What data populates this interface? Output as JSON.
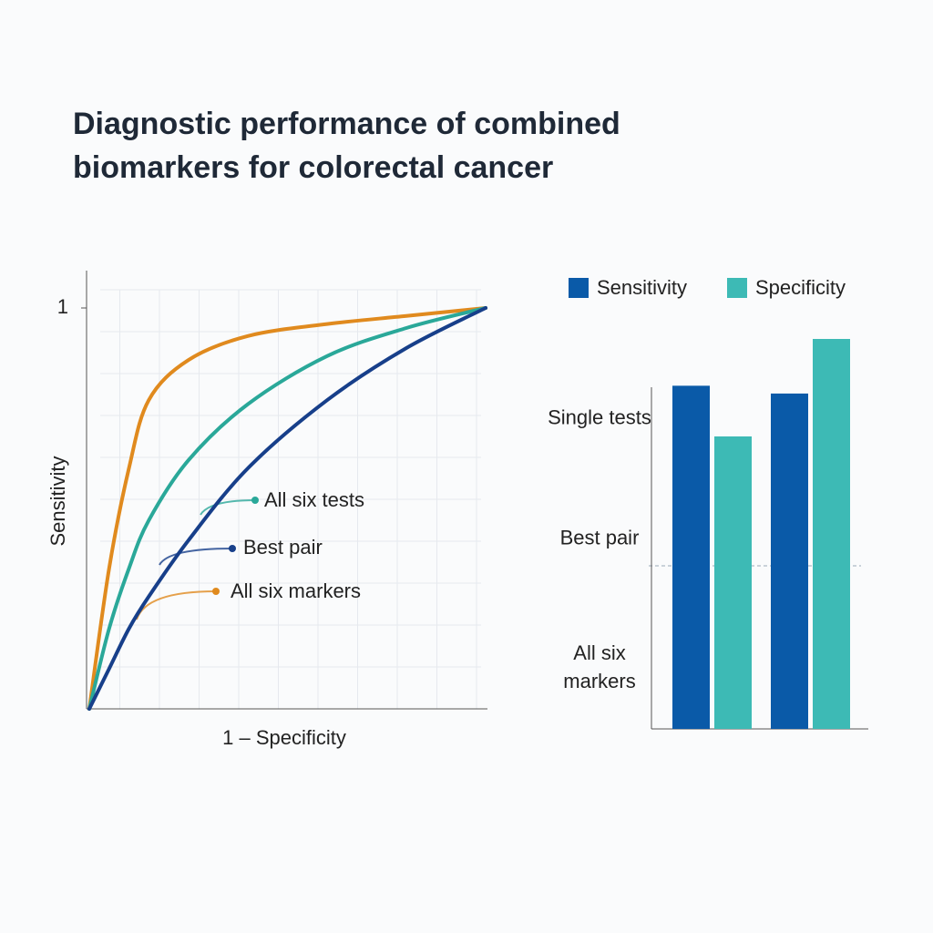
{
  "title": "Diagnostic performance of combined biomarkers for colorectal cancer",
  "chart_data": [
    {
      "type": "line",
      "xlabel": "1 – Specificity",
      "ylabel": "Sensitivity",
      "x": [
        0,
        0.05,
        0.1,
        0.15,
        0.25,
        0.4,
        0.6,
        0.8,
        1
      ],
      "xlim": [
        0,
        1
      ],
      "ylim": [
        0,
        1
      ],
      "yticks": [
        1
      ],
      "grid": true,
      "series": [
        {
          "name": "All six markers",
          "color": "#e08a1e",
          "values": [
            0,
            0.35,
            0.6,
            0.77,
            0.87,
            0.93,
            0.96,
            0.98,
            1
          ]
        },
        {
          "name": "All six tests",
          "color": "#2aa899",
          "values": [
            0,
            0.2,
            0.35,
            0.47,
            0.62,
            0.76,
            0.88,
            0.95,
            1
          ]
        },
        {
          "name": "Best pair",
          "color": "#173f8a",
          "values": [
            0,
            0.1,
            0.2,
            0.28,
            0.42,
            0.6,
            0.77,
            0.9,
            1
          ]
        }
      ]
    },
    {
      "type": "bar",
      "categories": [
        null,
        null
      ],
      "ylim": [
        0,
        100
      ],
      "yticks": [
        {
          "value": 80,
          "label": "Single tests"
        },
        {
          "value": 49,
          "label": "Best pair"
        },
        {
          "value": 16,
          "label": "All six markers"
        }
      ],
      "series": [
        {
          "name": "Sensitivity",
          "color": "#0a5aa8",
          "values": [
            88,
            86
          ]
        },
        {
          "name": "Specificity",
          "color": "#3dbab5",
          "values": [
            75,
            100
          ]
        }
      ]
    }
  ]
}
